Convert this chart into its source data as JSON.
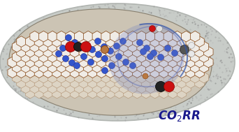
{
  "title_color": "#1a1a8c",
  "title_fontsize": 12,
  "co2_black": "#222222",
  "co2_red": "#cc1111",
  "arrow_color": "#2244aa",
  "ring_gray": "#b0b4b0",
  "ring_light": "#c8ccc8",
  "disk_bg": "#ccc4b4",
  "graphene_face": "#f0ece6",
  "graphene_edge": "#8B5020",
  "nitrogen_face": "#3355cc",
  "nitrogen_edge": "#223399",
  "blue_band": "#7080c0",
  "iron_face": "#b87840",
  "iron_edge": "#8B4510",
  "white_face": "#f8f4ee",
  "white_edge": "#d0c8b8"
}
